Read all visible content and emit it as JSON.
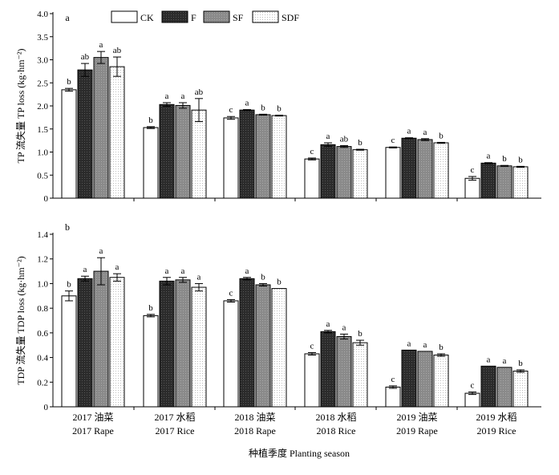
{
  "chart_data": [
    {
      "type": "bar",
      "panel_label": "a",
      "ylabel": "TP 流失量 TP loss (kg·hm⁻²)",
      "ylim": [
        0,
        4.0
      ],
      "yticks": [
        "0",
        "0.5",
        "1.0",
        "1.5",
        "2.0",
        "2.5",
        "3.0",
        "3.5",
        "4.0"
      ],
      "categories": [
        "2017 Rape",
        "2017 Rice",
        "2018 Rape",
        "2018 Rice",
        "2019 Rape",
        "2019 Rice"
      ],
      "series": [
        {
          "name": "CK",
          "values": [
            2.35,
            1.53,
            1.74,
            0.85,
            1.1,
            0.43
          ],
          "errors": [
            0.03,
            0.02,
            0.03,
            0.02,
            0.01,
            0.04
          ],
          "letters": [
            "b",
            "b",
            "c",
            "c",
            "c",
            "c"
          ]
        },
        {
          "name": "F",
          "values": [
            2.78,
            2.03,
            1.91,
            1.16,
            1.3,
            0.76
          ],
          "errors": [
            0.14,
            0.04,
            0.01,
            0.04,
            0.01,
            0.01
          ],
          "letters": [
            "ab",
            "a",
            "a",
            "a",
            "a",
            "a"
          ]
        },
        {
          "name": "SF",
          "values": [
            3.05,
            2.01,
            1.81,
            1.12,
            1.27,
            0.7
          ],
          "errors": [
            0.13,
            0.06,
            0.01,
            0.02,
            0.02,
            0.01
          ],
          "letters": [
            "a",
            "a",
            "b",
            "ab",
            "a",
            "b"
          ]
        },
        {
          "name": "SDF",
          "values": [
            2.85,
            1.91,
            1.79,
            1.05,
            1.2,
            0.68
          ],
          "errors": [
            0.21,
            0.25,
            0.01,
            0.01,
            0.01,
            0.01
          ],
          "letters": [
            "ab",
            "ab",
            "b",
            "b",
            "b",
            "b"
          ]
        }
      ]
    },
    {
      "type": "bar",
      "panel_label": "b",
      "ylabel": "TDP 流失量 TDP loss (kg·hm⁻²)",
      "ylim": [
        0,
        1.4
      ],
      "yticks": [
        "0",
        "0.2",
        "0.4",
        "0.6",
        "0.8",
        "1.0",
        "1.2",
        "1.4"
      ],
      "categories": [
        "2017 Rape",
        "2017 Rice",
        "2018 Rape",
        "2018 Rice",
        "2019 Rape",
        "2019 Rice"
      ],
      "series": [
        {
          "name": "CK",
          "values": [
            0.9,
            0.74,
            0.86,
            0.43,
            0.16,
            0.11
          ],
          "errors": [
            0.04,
            0.01,
            0.01,
            0.01,
            0.01,
            0.01
          ],
          "letters": [
            "b",
            "b",
            "c",
            "c",
            "c",
            "c"
          ]
        },
        {
          "name": "F",
          "values": [
            1.04,
            1.02,
            1.04,
            0.61,
            0.46,
            0.33
          ],
          "errors": [
            0.02,
            0.03,
            0.01,
            0.01,
            0.0,
            0.0
          ],
          "letters": [
            "a",
            "a",
            "a",
            "a",
            "a",
            "a"
          ]
        },
        {
          "name": "SF",
          "values": [
            1.1,
            1.03,
            0.99,
            0.57,
            0.45,
            0.32
          ],
          "errors": [
            0.11,
            0.02,
            0.01,
            0.02,
            0.0,
            0.0
          ],
          "letters": [
            "a",
            "a",
            "b",
            "a",
            "a",
            "a"
          ]
        },
        {
          "name": "SDF",
          "values": [
            1.05,
            0.97,
            0.96,
            0.52,
            0.42,
            0.29
          ],
          "errors": [
            0.03,
            0.03,
            0.0,
            0.02,
            0.01,
            0.01
          ],
          "letters": [
            "a",
            "a",
            "b",
            "b",
            "b",
            "b"
          ]
        }
      ]
    }
  ],
  "categories_cn": [
    "2017 油菜",
    "2017 水稻",
    "2018 油菜",
    "2018 水稻",
    "2019 油菜",
    "2019 水稻"
  ],
  "xlabel": "种植季度 Planting season",
  "legend": {
    "placement": "top",
    "items": [
      "CK",
      "F",
      "SF",
      "SDF"
    ]
  },
  "colors": {
    "CK": "#ffffff",
    "F": "#2b2b2b",
    "SF": "#8a8a8a",
    "SDF": "#f2f2f2"
  }
}
